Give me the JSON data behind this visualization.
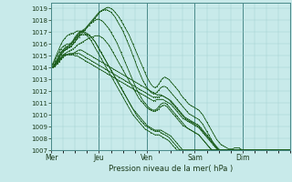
{
  "background_color": "#c8eaea",
  "plot_bg_color": "#d8eee8",
  "grid_color_minor": "#b0d4d0",
  "grid_color_major": "#88b8b0",
  "line_color": "#1a5c1a",
  "xlabel": "Pression niveau de la mer( hPa )",
  "ylim": [
    1007,
    1019.5
  ],
  "yticks": [
    1007,
    1008,
    1009,
    1010,
    1011,
    1012,
    1013,
    1014,
    1015,
    1016,
    1017,
    1018,
    1019
  ],
  "day_labels": [
    "Mer",
    "Jeu",
    "Ven",
    "Sam",
    "Dim"
  ],
  "day_positions": [
    0,
    24,
    48,
    72,
    96
  ],
  "total_hours": 120,
  "series": [
    [
      1014.0,
      1014.1,
      1014.3,
      1014.6,
      1015.0,
      1015.3,
      1015.5,
      1015.6,
      1015.7,
      1015.8,
      1016.0,
      1016.2,
      1016.5,
      1016.7,
      1016.9,
      1017.0,
      1017.1,
      1017.2,
      1017.4,
      1017.6,
      1017.8,
      1018.0,
      1018.2,
      1018.4,
      1018.6,
      1018.8,
      1018.9,
      1019.0,
      1019.1,
      1019.1,
      1019.0,
      1018.9,
      1018.7,
      1018.5,
      1018.3,
      1018.0,
      1017.7,
      1017.4,
      1017.1,
      1016.8,
      1016.4,
      1016.0,
      1015.6,
      1015.2,
      1014.8,
      1014.4,
      1014.0,
      1013.6,
      1013.2,
      1012.9,
      1012.6,
      1012.4,
      1012.3,
      1012.4,
      1012.6,
      1012.9,
      1013.1,
      1013.2,
      1013.1,
      1013.0,
      1012.8,
      1012.6,
      1012.4,
      1012.2,
      1012.0,
      1011.7,
      1011.5,
      1011.3,
      1011.1,
      1010.9,
      1010.8,
      1010.7,
      1010.6,
      1010.5,
      1010.4,
      1010.2,
      1010.0,
      1009.7,
      1009.4,
      1009.1,
      1008.8,
      1008.5,
      1008.2,
      1007.9,
      1007.7,
      1007.5,
      1007.4,
      1007.3,
      1007.2,
      1007.1,
      1007.1,
      1007.1,
      1007.2,
      1007.2,
      1007.2,
      1007.1,
      1007.0,
      1007.0,
      1007.0,
      1007.0,
      1007.0,
      1007.0,
      1007.0,
      1007.0,
      1007.0,
      1007.0,
      1007.0,
      1007.0,
      1007.0,
      1007.0,
      1007.0,
      1007.0,
      1007.0,
      1007.0,
      1007.0,
      1007.0,
      1007.0,
      1007.0,
      1007.0,
      1007.0,
      1007.0
    ],
    [
      1014.0,
      1014.1,
      1014.4,
      1014.7,
      1015.0,
      1015.3,
      1015.5,
      1015.7,
      1015.8,
      1015.9,
      1016.0,
      1016.2,
      1016.4,
      1016.6,
      1016.8,
      1017.0,
      1017.2,
      1017.3,
      1017.5,
      1017.7,
      1017.9,
      1018.1,
      1018.3,
      1018.5,
      1018.7,
      1018.8,
      1018.9,
      1018.9,
      1018.9,
      1018.8,
      1018.7,
      1018.5,
      1018.3,
      1018.0,
      1017.7,
      1017.4,
      1017.1,
      1016.7,
      1016.3,
      1015.9,
      1015.5,
      1015.0,
      1014.6,
      1014.1,
      1013.7,
      1013.3,
      1012.9,
      1012.6,
      1012.3,
      1012.1,
      1011.9,
      1011.8,
      1011.8,
      1011.9,
      1012.1,
      1012.3,
      1012.4,
      1012.4,
      1012.3,
      1012.1,
      1011.9,
      1011.7,
      1011.5,
      1011.3,
      1011.1,
      1010.9,
      1010.7,
      1010.5,
      1010.3,
      1010.1,
      1010.0,
      1009.9,
      1009.8,
      1009.7,
      1009.6,
      1009.4,
      1009.2,
      1008.9,
      1008.6,
      1008.3,
      1008.0,
      1007.7,
      1007.4,
      1007.2,
      1007.0,
      1007.0,
      1007.0,
      1007.0,
      1007.0,
      1007.0,
      1007.0,
      1007.0,
      1007.0,
      1007.0,
      1007.0,
      1007.0,
      1007.0,
      1007.0,
      1007.0,
      1007.0,
      1007.0,
      1007.0,
      1007.0,
      1007.0,
      1007.0,
      1007.0,
      1007.0,
      1007.0,
      1007.0,
      1007.0,
      1007.0,
      1007.0,
      1007.0,
      1007.0,
      1007.0,
      1007.0,
      1007.0,
      1007.0,
      1007.0,
      1007.0,
      1007.0
    ],
    [
      1014.0,
      1014.1,
      1014.3,
      1014.5,
      1014.8,
      1015.1,
      1015.3,
      1015.5,
      1015.6,
      1015.7,
      1015.8,
      1016.0,
      1016.2,
      1016.4,
      1016.6,
      1016.8,
      1017.0,
      1017.2,
      1017.4,
      1017.6,
      1017.8,
      1017.9,
      1018.0,
      1018.1,
      1018.1,
      1018.0,
      1017.9,
      1017.7,
      1017.5,
      1017.3,
      1017.0,
      1016.7,
      1016.4,
      1016.1,
      1015.7,
      1015.3,
      1014.9,
      1014.5,
      1014.1,
      1013.7,
      1013.3,
      1012.9,
      1012.5,
      1012.1,
      1011.8,
      1011.5,
      1011.2,
      1011.0,
      1010.8,
      1010.6,
      1010.5,
      1010.4,
      1010.4,
      1010.5,
      1010.7,
      1010.9,
      1011.0,
      1011.0,
      1010.9,
      1010.7,
      1010.5,
      1010.3,
      1010.1,
      1009.9,
      1009.7,
      1009.5,
      1009.3,
      1009.1,
      1008.9,
      1008.8,
      1008.7,
      1008.6,
      1008.5,
      1008.4,
      1008.3,
      1008.1,
      1007.9,
      1007.7,
      1007.5,
      1007.3,
      1007.1,
      1007.0,
      1007.0,
      1007.0,
      1007.0,
      1007.0,
      1007.0,
      1007.0,
      1007.0,
      1007.0,
      1007.0,
      1007.0,
      1007.0,
      1007.0,
      1007.0,
      1007.0,
      1007.0,
      1007.0,
      1007.0,
      1007.0,
      1007.0,
      1007.0,
      1007.0,
      1007.0,
      1007.0,
      1007.0,
      1007.0,
      1007.0,
      1007.0,
      1007.0,
      1007.0,
      1007.0,
      1007.0,
      1007.0,
      1007.0,
      1007.0,
      1007.0,
      1007.0,
      1007.0,
      1007.0,
      1007.0
    ],
    [
      1014.0,
      1014.1,
      1014.3,
      1014.5,
      1014.7,
      1014.9,
      1015.1,
      1015.2,
      1015.3,
      1015.4,
      1015.5,
      1015.6,
      1015.7,
      1015.9,
      1016.0,
      1016.1,
      1016.2,
      1016.3,
      1016.4,
      1016.5,
      1016.6,
      1016.6,
      1016.7,
      1016.7,
      1016.7,
      1016.6,
      1016.5,
      1016.3,
      1016.1,
      1015.9,
      1015.6,
      1015.3,
      1015.0,
      1014.7,
      1014.4,
      1014.1,
      1013.8,
      1013.5,
      1013.2,
      1012.9,
      1012.6,
      1012.3,
      1012.0,
      1011.7,
      1011.4,
      1011.2,
      1011.0,
      1010.8,
      1010.6,
      1010.5,
      1010.4,
      1010.3,
      1010.3,
      1010.4,
      1010.5,
      1010.7,
      1010.8,
      1010.8,
      1010.7,
      1010.5,
      1010.3,
      1010.1,
      1009.9,
      1009.7,
      1009.5,
      1009.3,
      1009.1,
      1009.0,
      1008.9,
      1008.8,
      1008.7,
      1008.6,
      1008.5,
      1008.4,
      1008.3,
      1008.1,
      1007.9,
      1007.7,
      1007.5,
      1007.3,
      1007.1,
      1007.0,
      1007.0,
      1007.0,
      1007.0,
      1007.0,
      1007.0,
      1007.0,
      1007.0,
      1007.0,
      1007.0,
      1007.0,
      1007.0,
      1007.0,
      1007.0,
      1007.0,
      1007.0,
      1007.0,
      1007.0,
      1007.0,
      1007.0,
      1007.0,
      1007.0,
      1007.0,
      1007.0,
      1007.0,
      1007.0,
      1007.0,
      1007.0,
      1007.0,
      1007.0,
      1007.0,
      1007.0,
      1007.0,
      1007.0,
      1007.0,
      1007.0,
      1007.0,
      1007.0,
      1007.0,
      1007.0
    ],
    [
      1014.0,
      1014.1,
      1014.2,
      1014.4,
      1014.6,
      1014.8,
      1015.0,
      1015.1,
      1015.1,
      1015.2,
      1015.2,
      1015.2,
      1015.2,
      1015.2,
      1015.2,
      1015.1,
      1015.0,
      1014.9,
      1014.8,
      1014.7,
      1014.6,
      1014.5,
      1014.4,
      1014.3,
      1014.2,
      1014.1,
      1014.0,
      1013.9,
      1013.8,
      1013.7,
      1013.6,
      1013.5,
      1013.4,
      1013.3,
      1013.2,
      1013.1,
      1013.0,
      1012.9,
      1012.8,
      1012.7,
      1012.6,
      1012.5,
      1012.4,
      1012.3,
      1012.2,
      1012.1,
      1012.0,
      1011.9,
      1011.8,
      1011.7,
      1011.6,
      1011.5,
      1011.5,
      1011.5,
      1011.5,
      1011.6,
      1011.6,
      1011.5,
      1011.4,
      1011.3,
      1011.1,
      1010.9,
      1010.7,
      1010.5,
      1010.3,
      1010.1,
      1009.9,
      1009.7,
      1009.6,
      1009.5,
      1009.4,
      1009.3,
      1009.2,
      1009.1,
      1009.0,
      1008.8,
      1008.6,
      1008.4,
      1008.2,
      1008.0,
      1007.8,
      1007.6,
      1007.4,
      1007.2,
      1007.0,
      1007.0,
      1007.0,
      1007.0,
      1007.0,
      1007.0,
      1007.0,
      1007.0,
      1007.0,
      1007.0,
      1007.0,
      1007.0,
      1007.0,
      1007.0,
      1007.0,
      1007.0,
      1007.0,
      1007.0,
      1007.0,
      1007.0,
      1007.0,
      1007.0,
      1007.0,
      1007.0,
      1007.0,
      1007.0,
      1007.0,
      1007.0,
      1007.0,
      1007.0,
      1007.0,
      1007.0,
      1007.0,
      1007.0,
      1007.0,
      1007.0,
      1007.0
    ],
    [
      1014.0,
      1014.0,
      1014.1,
      1014.3,
      1014.5,
      1014.7,
      1014.9,
      1015.0,
      1015.1,
      1015.1,
      1015.1,
      1015.1,
      1015.0,
      1015.0,
      1014.9,
      1014.8,
      1014.7,
      1014.6,
      1014.5,
      1014.4,
      1014.3,
      1014.2,
      1014.1,
      1014.0,
      1013.9,
      1013.8,
      1013.7,
      1013.6,
      1013.5,
      1013.4,
      1013.3,
      1013.2,
      1013.1,
      1013.0,
      1012.9,
      1012.8,
      1012.7,
      1012.6,
      1012.5,
      1012.4,
      1012.3,
      1012.2,
      1012.1,
      1012.0,
      1011.9,
      1011.8,
      1011.7,
      1011.6,
      1011.5,
      1011.4,
      1011.3,
      1011.2,
      1011.2,
      1011.3,
      1011.3,
      1011.3,
      1011.3,
      1011.2,
      1011.1,
      1011.0,
      1010.9,
      1010.7,
      1010.5,
      1010.3,
      1010.1,
      1009.9,
      1009.7,
      1009.6,
      1009.5,
      1009.4,
      1009.3,
      1009.2,
      1009.1,
      1009.0,
      1008.9,
      1008.7,
      1008.5,
      1008.3,
      1008.1,
      1007.9,
      1007.7,
      1007.5,
      1007.3,
      1007.1,
      1007.0,
      1007.0,
      1007.0,
      1007.0,
      1007.0,
      1007.0,
      1007.0,
      1007.0,
      1007.0,
      1007.0,
      1007.0,
      1007.0,
      1007.0,
      1007.0,
      1007.0,
      1007.0,
      1007.0,
      1007.0,
      1007.0,
      1007.0,
      1007.0,
      1007.0,
      1007.0,
      1007.0,
      1007.0,
      1007.0,
      1007.0,
      1007.0,
      1007.0,
      1007.0,
      1007.0,
      1007.0,
      1007.0,
      1007.0,
      1007.0,
      1007.0,
      1007.0
    ],
    [
      1014.0,
      1014.1,
      1014.2,
      1014.4,
      1014.6,
      1014.8,
      1015.0,
      1015.1,
      1015.1,
      1015.1,
      1015.1,
      1015.2,
      1015.3,
      1015.4,
      1015.5,
      1015.5,
      1015.4,
      1015.3,
      1015.2,
      1015.1,
      1015.0,
      1014.9,
      1014.8,
      1014.7,
      1014.6,
      1014.5,
      1014.4,
      1014.3,
      1014.2,
      1014.1,
      1014.0,
      1013.9,
      1013.8,
      1013.7,
      1013.6,
      1013.5,
      1013.4,
      1013.3,
      1013.2,
      1013.1,
      1013.0,
      1012.9,
      1012.8,
      1012.7,
      1012.6,
      1012.5,
      1012.4,
      1012.3,
      1012.2,
      1012.1,
      1012.0,
      1011.9,
      1011.8,
      1011.7,
      1011.7,
      1011.7,
      1011.6,
      1011.5,
      1011.4,
      1011.3,
      1011.2,
      1011.0,
      1010.8,
      1010.6,
      1010.4,
      1010.2,
      1010.0,
      1009.8,
      1009.7,
      1009.6,
      1009.5,
      1009.4,
      1009.3,
      1009.2,
      1009.1,
      1008.9,
      1008.7,
      1008.5,
      1008.3,
      1008.1,
      1007.9,
      1007.7,
      1007.5,
      1007.3,
      1007.1,
      1007.0,
      1007.0,
      1007.0,
      1007.0,
      1007.0,
      1007.0,
      1007.0,
      1007.0,
      1007.0,
      1007.0,
      1007.0,
      1007.0,
      1007.0,
      1007.0,
      1007.0,
      1007.0,
      1007.0,
      1007.0,
      1007.0,
      1007.0,
      1007.0,
      1007.0,
      1007.0,
      1007.0,
      1007.0,
      1007.0,
      1007.0,
      1007.0,
      1007.0,
      1007.0,
      1007.0,
      1007.0,
      1007.0,
      1007.0,
      1007.0,
      1007.0
    ],
    [
      1014.0,
      1014.1,
      1014.3,
      1014.6,
      1014.9,
      1015.2,
      1015.4,
      1015.5,
      1015.6,
      1015.7,
      1015.8,
      1016.0,
      1016.2,
      1016.5,
      1016.7,
      1016.8,
      1016.8,
      1016.8,
      1016.8,
      1016.7,
      1016.6,
      1016.4,
      1016.2,
      1015.9,
      1015.6,
      1015.3,
      1015.0,
      1014.7,
      1014.4,
      1014.1,
      1013.8,
      1013.5,
      1013.2,
      1012.9,
      1012.6,
      1012.3,
      1012.0,
      1011.7,
      1011.4,
      1011.1,
      1010.8,
      1010.5,
      1010.3,
      1010.1,
      1009.9,
      1009.7,
      1009.5,
      1009.3,
      1009.1,
      1009.0,
      1008.9,
      1008.8,
      1008.7,
      1008.7,
      1008.7,
      1008.7,
      1008.6,
      1008.5,
      1008.4,
      1008.3,
      1008.2,
      1008.0,
      1007.8,
      1007.6,
      1007.4,
      1007.2,
      1007.0,
      1007.0,
      1007.0,
      1007.0,
      1007.0,
      1007.0,
      1007.0,
      1007.0,
      1007.0,
      1007.0,
      1007.0,
      1007.0,
      1007.0,
      1007.0,
      1007.0,
      1007.0,
      1007.0,
      1007.0,
      1007.0,
      1007.0,
      1007.0,
      1007.0,
      1007.0,
      1007.0,
      1007.0,
      1007.0,
      1007.0,
      1007.0,
      1007.0,
      1007.0,
      1007.0,
      1007.0,
      1007.0,
      1007.0,
      1007.0,
      1007.0,
      1007.0,
      1007.0,
      1007.0,
      1007.0,
      1007.0,
      1007.0,
      1007.0,
      1007.0,
      1007.0,
      1007.0,
      1007.0,
      1007.0,
      1007.0,
      1007.0,
      1007.0,
      1007.0,
      1007.0,
      1007.0,
      1007.0
    ],
    [
      1014.1,
      1014.3,
      1014.6,
      1015.0,
      1015.3,
      1015.6,
      1015.8,
      1015.9,
      1016.0,
      1016.0,
      1016.1,
      1016.3,
      1016.6,
      1016.8,
      1017.0,
      1017.1,
      1017.1,
      1017.0,
      1016.9,
      1016.8,
      1016.6,
      1016.4,
      1016.2,
      1015.9,
      1015.6,
      1015.3,
      1015.0,
      1014.7,
      1014.4,
      1014.1,
      1013.8,
      1013.5,
      1013.2,
      1012.9,
      1012.6,
      1012.3,
      1012.0,
      1011.7,
      1011.4,
      1011.1,
      1010.8,
      1010.5,
      1010.2,
      1009.9,
      1009.7,
      1009.5,
      1009.3,
      1009.1,
      1009.0,
      1008.9,
      1008.8,
      1008.7,
      1008.6,
      1008.6,
      1008.6,
      1008.5,
      1008.4,
      1008.3,
      1008.2,
      1008.1,
      1007.9,
      1007.7,
      1007.5,
      1007.3,
      1007.1,
      1007.0,
      1007.0,
      1007.0,
      1007.0,
      1007.0,
      1007.0,
      1007.0,
      1007.0,
      1007.0,
      1007.0,
      1007.0,
      1007.0,
      1007.0,
      1007.0,
      1007.0,
      1007.0,
      1007.0,
      1007.0,
      1007.0,
      1007.0,
      1007.0,
      1007.0,
      1007.0,
      1007.0,
      1007.0,
      1007.0,
      1007.0,
      1007.0,
      1007.0,
      1007.0,
      1007.0,
      1007.0,
      1007.0,
      1007.0,
      1007.0,
      1007.0,
      1007.0,
      1007.0,
      1007.0,
      1007.0,
      1007.0,
      1007.0,
      1007.0,
      1007.0,
      1007.0,
      1007.0,
      1007.0,
      1007.0,
      1007.0,
      1007.0,
      1007.0,
      1007.0,
      1007.0,
      1007.0,
      1007.0,
      1007.0
    ],
    [
      1014.1,
      1014.4,
      1014.8,
      1015.2,
      1015.6,
      1016.0,
      1016.3,
      1016.5,
      1016.7,
      1016.8,
      1016.9,
      1016.9,
      1017.0,
      1017.1,
      1017.1,
      1017.1,
      1017.0,
      1016.9,
      1016.7,
      1016.5,
      1016.3,
      1016.0,
      1015.7,
      1015.4,
      1015.1,
      1014.8,
      1014.5,
      1014.2,
      1013.9,
      1013.6,
      1013.3,
      1013.0,
      1012.7,
      1012.4,
      1012.1,
      1011.8,
      1011.5,
      1011.2,
      1010.9,
      1010.6,
      1010.3,
      1010.0,
      1009.8,
      1009.6,
      1009.4,
      1009.2,
      1009.0,
      1008.8,
      1008.7,
      1008.6,
      1008.5,
      1008.4,
      1008.3,
      1008.3,
      1008.3,
      1008.2,
      1008.1,
      1008.0,
      1007.9,
      1007.8,
      1007.6,
      1007.4,
      1007.2,
      1007.0,
      1007.0,
      1007.0,
      1007.0,
      1007.0,
      1007.0,
      1007.0,
      1007.0,
      1007.0,
      1007.0,
      1007.0,
      1007.0,
      1007.0,
      1007.0,
      1007.0,
      1007.0,
      1007.0,
      1007.0,
      1007.0,
      1007.0,
      1007.0,
      1007.0,
      1007.0,
      1007.0,
      1007.0,
      1007.0,
      1007.0,
      1007.0,
      1007.0,
      1007.0,
      1007.0,
      1007.0,
      1007.0,
      1007.0,
      1007.0,
      1007.0,
      1007.0,
      1007.0,
      1007.0,
      1007.0,
      1007.0,
      1007.0,
      1007.0,
      1007.0,
      1007.0,
      1007.0,
      1007.0,
      1007.0,
      1007.0,
      1007.0,
      1007.0,
      1007.0,
      1007.0,
      1007.0,
      1007.0,
      1007.0,
      1007.0,
      1007.0
    ]
  ]
}
